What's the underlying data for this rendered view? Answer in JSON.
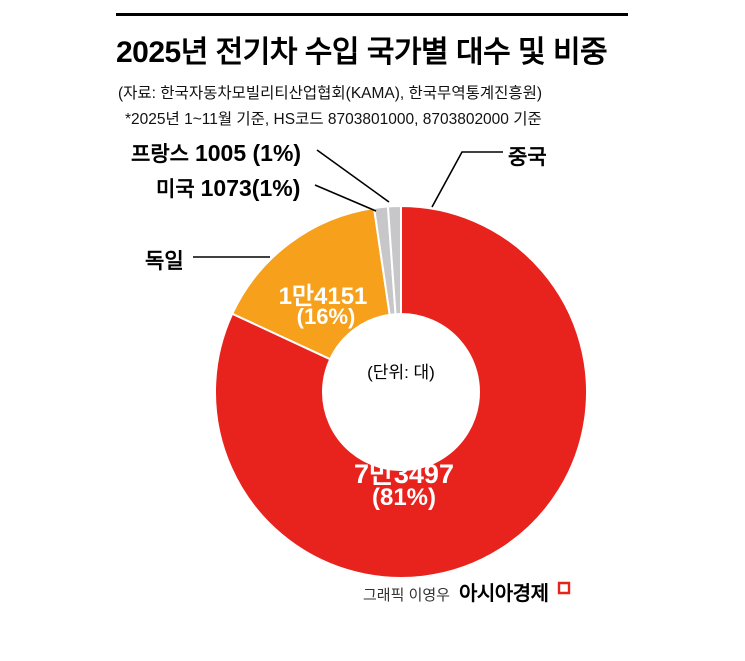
{
  "header": {
    "title": "2025년 전기차 수입 국가별 대수 및 비중",
    "source": "(자료: 한국자동차모빌리티산업협회(KAMA), 한국무역통계진흥원)",
    "note": "*2025년 1~11월 기준, HS코드 8703801000, 8703802000 기준"
  },
  "chart_data": {
    "type": "pie",
    "style": "donut",
    "title": "2025년 전기차 수입 국가별 대수 및 비중",
    "center_label": "(단위: 대)",
    "categories": [
      "중국",
      "독일",
      "미국",
      "프랑스"
    ],
    "values": [
      73497,
      14151,
      1073,
      1005
    ],
    "percents": [
      81,
      16,
      1,
      1
    ],
    "colors": [
      "#e8231d",
      "#f6a01c",
      "#c7c7c9",
      "#c7c7c9"
    ],
    "legend_position": "callout-labels",
    "slice_labels": {
      "china": {
        "value": "7만3497",
        "pct": "(81%)"
      },
      "germany": {
        "value": "1만4151",
        "pct": "(16%)"
      }
    }
  },
  "callouts": {
    "france": {
      "name": "프랑스",
      "value": "1005 (1%)"
    },
    "usa": {
      "name": "미국",
      "value": "1073(1%)"
    },
    "germany": {
      "name": "독일"
    },
    "china": {
      "name": "중국"
    }
  },
  "footer": {
    "credit": "그래픽 이영우",
    "brand": "아시아경제"
  }
}
